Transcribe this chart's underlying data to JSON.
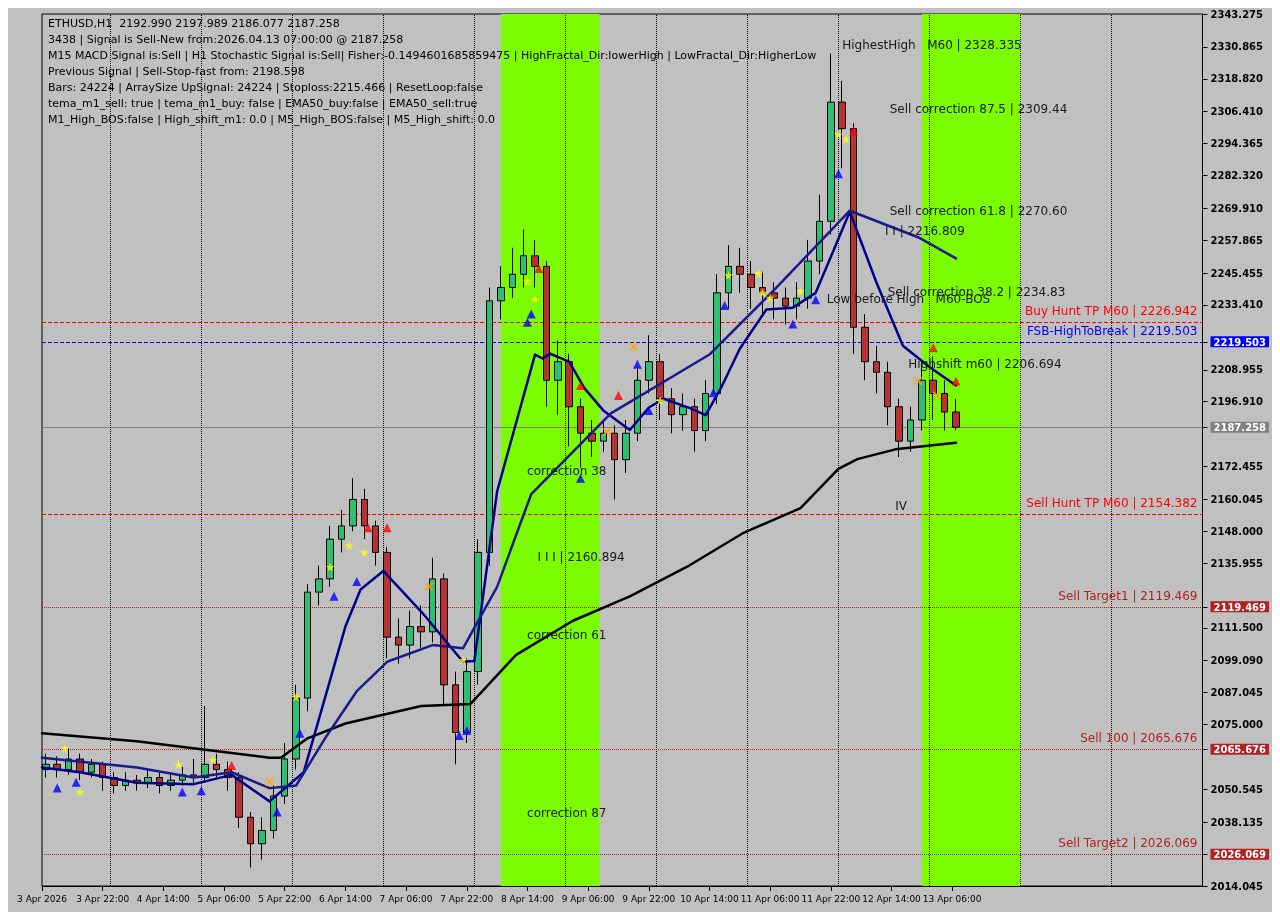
{
  "chart_data": {
    "type": "candlestick",
    "title": "ETHUSD,H1  2192.990 2197.989 2186.077 2187.258",
    "annotations": [
      "3438 | Signal is Sell-New from:2026.04.13 07:00:00 @ 2187.258",
      "M15 MACD Signal is:Sell | H1 Stochastic Signal is:Sell| Fisher:-0.1494601685859475 | HighFractal_Dir:lowerHigh | LowFractal_Dir:HigherLow",
      "Previous Signal | Sell-Stop-fast from: 2198.598",
      "Bars: 24224 | ArraySize UpSignal: 24224 | Stoploss:2215.466 | ResetLoop:false",
      "tema_m1_sell: true | tema_m1_buy: false | EMA50_buy:false | EMA50_sell:true",
      "M1_High_BOS:false | High_shift_m1: 0.0 | M5_High_BOS:false | M5_High_shift: 0.0",
      "Sell correction 87.5 | 2309.44",
      "Sell correction 61.8 | 2270.60",
      "I I | 2216.809",
      "Highshift m60 | 2206.694",
      "I I I | 2160.894",
      "correction 38",
      "correction 61",
      "correction 87",
      "Low before High   M60-BOS",
      {
        "text": "HighestHigh   M60 | 2328.335",
        "x": "2026-04-12T01:00",
        "y": 2328.335
      },
      {
        "text": "Sell correction 38.2 | 2234.83",
        "x": "2026-04-12T13:00",
        "y": 2234.83
      },
      {
        "text": "IV",
        "x": "2026-04-12T15:00",
        "y": 2154.1
      }
    ],
    "x": [
      "2026-04-03T07:00",
      "2026-04-03T10:00",
      "2026-04-03T13:00",
      "2026-04-03T16:00",
      "2026-04-03T19:00",
      "2026-04-03T22:00",
      "2026-04-04T01:00",
      "2026-04-04T04:00",
      "2026-04-04T07:00",
      "2026-04-04T10:00",
      "2026-04-04T13:00",
      "2026-04-04T16:00",
      "2026-04-04T19:00",
      "2026-04-04T22:00",
      "2026-04-05T01:00",
      "2026-04-05T04:00",
      "2026-04-05T07:00",
      "2026-04-05T10:00",
      "2026-04-05T13:00",
      "2026-04-05T16:00",
      "2026-04-05T19:00",
      "2026-04-05T22:00",
      "2026-04-06T01:00",
      "2026-04-06T04:00",
      "2026-04-06T07:00",
      "2026-04-06T10:00",
      "2026-04-06T13:00",
      "2026-04-06T16:00",
      "2026-04-06T19:00",
      "2026-04-06T22:00",
      "2026-04-07T01:00",
      "2026-04-07T04:00",
      "2026-04-07T07:00",
      "2026-04-07T10:00",
      "2026-04-07T13:00",
      "2026-04-07T16:00",
      "2026-04-07T19:00",
      "2026-04-07T22:00",
      "2026-04-08T01:00",
      "2026-04-08T04:00",
      "2026-04-08T07:00",
      "2026-04-08T10:00",
      "2026-04-08T13:00",
      "2026-04-08T16:00",
      "2026-04-08T19:00",
      "2026-04-08T22:00",
      "2026-04-09T01:00",
      "2026-04-09T04:00",
      "2026-04-09T07:00",
      "2026-04-09T10:00",
      "2026-04-09T13:00",
      "2026-04-09T16:00",
      "2026-04-09T19:00",
      "2026-04-09T22:00",
      "2026-04-10T01:00",
      "2026-04-10T04:00",
      "2026-04-10T07:00",
      "2026-04-10T10:00",
      "2026-04-10T13:00",
      "2026-04-10T16:00",
      "2026-04-10T19:00",
      "2026-04-10T22:00",
      "2026-04-11T01:00",
      "2026-04-11T04:00",
      "2026-04-11T07:00",
      "2026-04-11T10:00",
      "2026-04-11T13:00",
      "2026-04-11T16:00",
      "2026-04-11T19:00",
      "2026-04-11T22:00",
      "2026-04-12T01:00",
      "2026-04-12T04:00",
      "2026-04-12T07:00",
      "2026-04-12T10:00",
      "2026-04-12T13:00",
      "2026-04-12T16:00",
      "2026-04-12T19:00",
      "2026-04-12T22:00",
      "2026-04-13T01:00",
      "2026-04-13T04:00",
      "2026-04-13T07:00"
    ],
    "ohlc": [
      [
        2058,
        2064,
        2055,
        2060
      ],
      [
        2060,
        2063,
        2055,
        2058
      ],
      [
        2058,
        2066,
        2056,
        2062
      ],
      [
        2062,
        2064,
        2054,
        2057
      ],
      [
        2057,
        2062,
        2055,
        2060
      ],
      [
        2060,
        2061,
        2050,
        2055
      ],
      [
        2055,
        2057,
        2049,
        2052
      ],
      [
        2052,
        2057,
        2050,
        2054
      ],
      [
        2054,
        2056,
        2050,
        2053
      ],
      [
        2053,
        2058,
        2051,
        2055
      ],
      [
        2055,
        2057,
        2049,
        2052
      ],
      [
        2052,
        2057,
        2050,
        2054
      ],
      [
        2054,
        2059,
        2052,
        2056
      ],
      [
        2056,
        2062,
        2053,
        2055
      ],
      [
        2055,
        2082,
        2053,
        2060
      ],
      [
        2060,
        2064,
        2055,
        2058
      ],
      [
        2058,
        2061,
        2050,
        2055
      ],
      [
        2055,
        2057,
        2036,
        2040
      ],
      [
        2040,
        2042,
        2021,
        2030
      ],
      [
        2030,
        2040,
        2024,
        2035
      ],
      [
        2035,
        2052,
        2032,
        2048
      ],
      [
        2048,
        2068,
        2045,
        2062
      ],
      [
        2062,
        2090,
        2058,
        2085
      ],
      [
        2085,
        2128,
        2080,
        2125
      ],
      [
        2125,
        2135,
        2120,
        2130
      ],
      [
        2130,
        2150,
        2127,
        2145
      ],
      [
        2145,
        2156,
        2140,
        2150
      ],
      [
        2150,
        2168,
        2148,
        2160
      ],
      [
        2160,
        2164,
        2145,
        2150
      ],
      [
        2150,
        2152,
        2135,
        2140
      ],
      [
        2140,
        2142,
        2100,
        2108
      ],
      [
        2108,
        2115,
        2098,
        2105
      ],
      [
        2105,
        2118,
        2100,
        2112
      ],
      [
        2112,
        2120,
        2104,
        2110
      ],
      [
        2110,
        2138,
        2106,
        2130
      ],
      [
        2130,
        2132,
        2082,
        2090
      ],
      [
        2090,
        2095,
        2060,
        2072
      ],
      [
        2072,
        2100,
        2068,
        2095
      ],
      [
        2095,
        2145,
        2090,
        2140
      ],
      [
        2140,
        2240,
        2135,
        2235
      ],
      [
        2235,
        2248,
        2228,
        2240
      ],
      [
        2240,
        2255,
        2236,
        2245
      ],
      [
        2245,
        2262,
        2240,
        2252
      ],
      [
        2252,
        2258,
        2240,
        2248
      ],
      [
        2248,
        2250,
        2195,
        2205
      ],
      [
        2205,
        2220,
        2192,
        2212
      ],
      [
        2212,
        2215,
        2180,
        2195
      ],
      [
        2195,
        2198,
        2172,
        2185
      ],
      [
        2185,
        2190,
        2176,
        2182
      ],
      [
        2182,
        2190,
        2178,
        2185
      ],
      [
        2185,
        2188,
        2160,
        2175
      ],
      [
        2175,
        2190,
        2170,
        2185
      ],
      [
        2185,
        2210,
        2182,
        2205
      ],
      [
        2205,
        2222,
        2200,
        2212
      ],
      [
        2212,
        2215,
        2190,
        2198
      ],
      [
        2198,
        2202,
        2185,
        2192
      ],
      [
        2192,
        2200,
        2186,
        2195
      ],
      [
        2195,
        2198,
        2178,
        2186
      ],
      [
        2186,
        2205,
        2182,
        2200
      ],
      [
        2200,
        2245,
        2196,
        2238
      ],
      [
        2238,
        2256,
        2232,
        2248
      ],
      [
        2248,
        2255,
        2238,
        2245
      ],
      [
        2245,
        2250,
        2232,
        2240
      ],
      [
        2240,
        2246,
        2230,
        2238
      ],
      [
        2238,
        2242,
        2228,
        2236
      ],
      [
        2236,
        2240,
        2226,
        2233
      ],
      [
        2233,
        2242,
        2228,
        2236
      ],
      [
        2236,
        2258,
        2232,
        2250
      ],
      [
        2250,
        2275,
        2245,
        2265
      ],
      [
        2265,
        2328.335,
        2260,
        2310
      ],
      [
        2310,
        2318,
        2285,
        2300
      ],
      [
        2300,
        2302,
        2215,
        2225
      ],
      [
        2225,
        2230,
        2205,
        2212
      ],
      [
        2212,
        2218,
        2200,
        2208
      ],
      [
        2208,
        2212,
        2188,
        2195
      ],
      [
        2195,
        2198,
        2176,
        2182
      ],
      [
        2182,
        2195,
        2178,
        2190
      ],
      [
        2190,
        2212,
        2186,
        2205
      ],
      [
        2205,
        2214,
        2190,
        2200
      ],
      [
        2200,
        2205,
        2186,
        2193
      ],
      [
        2192.99,
        2197.989,
        2186.077,
        2187.258
      ]
    ],
    "series": [
      {
        "type": "line",
        "color": "#000000",
        "x": [
          "2026-04-03T06:00",
          "2026-04-04T07:00",
          "2026-04-05T08:00",
          "2026-04-05T18:00",
          "2026-04-05T21:00",
          "2026-04-06T04:00",
          "2026-04-06T14:00",
          "2026-04-07T10:00",
          "2026-04-07T23:00",
          "2026-04-08T11:00",
          "2026-04-09T02:00",
          "2026-04-09T17:00",
          "2026-04-10T08:00",
          "2026-04-10T23:00",
          "2026-04-11T14:00",
          "2026-04-12T00:00",
          "2026-04-12T05:00",
          "2026-04-12T15:00",
          "2026-04-13T07:00"
        ],
        "values": [
          2071.7,
          2068.7,
          2064.3,
          2062.5,
          2062.5,
          2069.8,
          2075.4,
          2082.0,
          2082.8,
          2101.3,
          2114.2,
          2123.4,
          2134.5,
          2147.4,
          2156.7,
          2171.5,
          2175.2,
          2178.9,
          2181.4
        ]
      },
      {
        "type": "line",
        "color": "#00008b",
        "x": [
          "2026-04-03T06:00",
          "2026-04-03T16:00",
          "2026-04-04T07:00",
          "2026-04-04T22:00",
          "2026-04-05T08:00",
          "2026-04-05T18:00",
          "2026-04-06T03:00",
          "2026-04-06T14:00",
          "2026-04-06T18:00",
          "2026-04-07T00:00",
          "2026-04-07T11:00",
          "2026-04-07T21:00",
          "2026-04-08T00:00",
          "2026-04-08T06:00",
          "2026-04-08T16:00",
          "2026-04-08T18:00",
          "2026-04-08T20:00",
          "2026-04-09T01:00",
          "2026-04-09T05:00",
          "2026-04-09T10:00",
          "2026-04-09T17:00",
          "2026-04-09T22:00",
          "2026-04-10T02:00",
          "2026-04-10T09:00",
          "2026-04-10T13:00",
          "2026-04-10T17:00",
          "2026-04-10T22:00",
          "2026-04-11T05:00",
          "2026-04-11T12:00",
          "2026-04-11T18:00",
          "2026-04-12T03:00",
          "2026-04-12T10:00",
          "2026-04-12T17:00",
          "2026-04-13T00:00",
          "2026-04-13T07:00"
        ],
        "values": [
          2058.8,
          2057,
          2053,
          2052.5,
          2056,
          2046,
          2057,
          2112,
          2126,
          2133,
          2116,
          2098.7,
          2099,
          2163,
          2214.7,
          2213.2,
          2215,
          2212,
          2202,
          2193.6,
          2186.2,
          2194.7,
          2198,
          2194.4,
          2191.8,
          2202,
          2216.9,
          2231.7,
          2232.4,
          2238,
          2268.6,
          2242,
          2218,
          2210,
          2203
        ]
      },
      {
        "type": "line",
        "color": "#1a1a8c",
        "x": [
          "2026-04-03T06:00",
          "2026-04-04T07:00",
          "2026-04-04T22:00",
          "2026-04-05T08:00",
          "2026-04-05T18:00",
          "2026-04-06T01:00",
          "2026-04-06T09:00",
          "2026-04-06T17:00",
          "2026-04-07T01:00",
          "2026-04-07T13:00",
          "2026-04-07T21:00",
          "2026-04-08T06:00",
          "2026-04-08T15:00",
          "2026-04-09T12:00",
          "2026-04-10T14:00",
          "2026-04-11T07:00",
          "2026-04-12T03:00",
          "2026-04-12T21:00",
          "2026-04-13T07:00"
        ],
        "values": [
          2062.5,
          2058.8,
          2055,
          2057,
          2051,
          2052,
          2070.6,
          2087.6,
          2098.7,
          2105,
          2103.8,
          2127,
          2162,
          2192.5,
          2214.7,
          2239,
          2269,
          2259,
          2251
        ]
      },
      {
        "type": "scatter",
        "marker": "star",
        "color": "#ffff00",
        "x": [
          "2026-04-03T12:00",
          "2026-04-03T16:00",
          "2026-04-04T18:00",
          "2026-04-05T03:00",
          "2026-04-06T01:00",
          "2026-04-06T10:00",
          "2026-04-06T15:00",
          "2026-04-06T19:00",
          "2026-04-07T21:00",
          "2026-04-08T14:00",
          "2026-04-08T16:00",
          "2026-04-10T01:00",
          "2026-04-10T19:00",
          "2026-04-11T03:00",
          "2026-04-11T04:00",
          "2026-04-11T06:00",
          "2026-04-11T14:00",
          "2026-04-12T00:00",
          "2026-04-12T02:00"
        ],
        "values": [
          2066,
          2049.5,
          2059.9,
          2061.7,
          2085.5,
          2134.5,
          2142.6,
          2140,
          2099.4,
          2242.4,
          2235.7,
          2197.3,
          2244.6,
          2245.4,
          2238,
          2236.1,
          2238.7,
          2297.8,
          2296
        ]
      },
      {
        "type": "scatter",
        "marker": "cross",
        "color": "#ffa500",
        "x": [
          "2026-04-05T18:00",
          "2026-04-07T12:00",
          "2026-04-09T11:00",
          "2026-04-09T18:00",
          "2026-04-12T21:00",
          "2026-04-13T02:00"
        ],
        "values": [
          2053.3,
          2127.1,
          2185.5,
          2217.6,
          2204.7,
          2199.2
        ]
      },
      {
        "type": "scatter",
        "marker": "triangle",
        "color": "#0000ff",
        "x": [
          "2026-04-03T10:00",
          "2026-04-03T15:00",
          "2026-04-04T19:00",
          "2026-04-05T00:00",
          "2026-04-05T20:00",
          "2026-04-06T02:00",
          "2026-04-06T11:00",
          "2026-04-06T17:00",
          "2026-04-07T20:00",
          "2026-04-07T22:00",
          "2026-04-08T14:00",
          "2026-04-08T15:00",
          "2026-04-09T04:00",
          "2026-04-09T19:00",
          "2026-04-09T22:00",
          "2026-04-10T15:00",
          "2026-04-10T18:00",
          "2026-04-11T12:00",
          "2026-04-11T18:00",
          "2026-04-12T00:00"
        ],
        "values": [
          2051,
          2053.2,
          2049.5,
          2050,
          2042,
          2071.7,
          2123.4,
          2129,
          2070.9,
          2072.8,
          2226.9,
          2230,
          2168,
          2211,
          2193.6,
          2200.3,
          2233.2,
          2226.2,
          2235.4,
          2283
        ]
      },
      {
        "type": "scatter",
        "marker": "triangle",
        "color": "#ff0000",
        "x": [
          "2026-04-05T08:00",
          "2026-04-06T20:00",
          "2026-04-07T01:00",
          "2026-04-08T17:00",
          "2026-04-09T04:00",
          "2026-04-09T14:00",
          "2026-04-12T04:00",
          "2026-04-13T01:00",
          "2026-04-13T07:00"
        ],
        "values": [
          2059.5,
          2149.3,
          2149.3,
          2247.2,
          2203,
          2199.2,
          2299,
          2217.3,
          2204.7
        ]
      }
    ],
    "ref_lines": [
      {
        "axis": "y",
        "value": 2219.503,
        "label": "FSB-HighToBreak | 2219.503",
        "color": "#0000ff",
        "line_style": "dashed"
      },
      {
        "axis": "y",
        "value": 2226.942,
        "label": "Buy Hunt TP M60 | 2226.942",
        "color": "#ff0000",
        "line_style": "dashed"
      },
      {
        "axis": "y",
        "value": 2187.258,
        "color": "#808080",
        "line_style": "solid"
      },
      {
        "axis": "y",
        "value": 2154.382,
        "label": "Sell Hunt TP M60 | 2154.382",
        "color": "#ff0000",
        "line_style": "dashed"
      },
      {
        "axis": "y",
        "value": 2119.469,
        "label": "Sell Target1 | 2119.469",
        "color": "#b22222",
        "line_style": "dotted"
      },
      {
        "axis": "y",
        "value": 2065.676,
        "label": "Sell 100 | 2065.676",
        "color": "#b22222",
        "line_style": "dotted"
      },
      {
        "axis": "y",
        "value": 2026.069,
        "label": "Sell Target2 | 2026.069",
        "color": "#b22222",
        "line_style": "dotted"
      },
      {
        "axis": "x",
        "value": "2026-04-04T00:00",
        "color": "#000000",
        "line_style": "dotted"
      },
      {
        "axis": "x",
        "value": "2026-04-05T00:00",
        "color": "#000000",
        "line_style": "dotted"
      },
      {
        "axis": "x",
        "value": "2026-04-06T00:00",
        "color": "#000000",
        "line_style": "dotted"
      },
      {
        "axis": "x",
        "value": "2026-04-07T00:00",
        "color": "#000000",
        "line_style": "dotted"
      },
      {
        "axis": "x",
        "value": "2026-04-08T00:00",
        "color": "#000000",
        "line_style": "dotted"
      },
      {
        "axis": "x",
        "value": "2026-04-09T00:00",
        "color": "#000000",
        "line_style": "dotted"
      },
      {
        "axis": "x",
        "value": "2026-04-10T00:00",
        "color": "#000000",
        "line_style": "dotted"
      },
      {
        "axis": "x",
        "value": "2026-04-11T00:00",
        "color": "#000000",
        "line_style": "dotted"
      },
      {
        "axis": "x",
        "value": "2026-04-12T00:00",
        "color": "#000000",
        "line_style": "dotted"
      },
      {
        "axis": "x",
        "value": "2026-04-13T00:00",
        "color": "#000000",
        "line_style": "dotted"
      },
      {
        "axis": "x",
        "value": "2026-04-14T00:00",
        "color": "#000000",
        "line_style": "dotted"
      },
      {
        "axis": "x",
        "value": "2026-04-15T00:00",
        "color": "#000000",
        "line_style": "dotted"
      }
    ],
    "bands": [
      {
        "axis": "x",
        "from": "2026-04-08T07:00",
        "to": "2026-04-09T09:00",
        "color": "#7cfc00"
      },
      {
        "axis": "x",
        "from": "2026-04-12T22:00",
        "to": "2026-04-14T00:00",
        "color": "#7cfc00"
      }
    ],
    "xlim": [
      "2026-04-03T06:00",
      "2026-04-16T00:00"
    ],
    "xticks": [
      {
        "value": "2026-04-03T06:00",
        "label": "3 Apr 2026"
      },
      {
        "value": "2026-04-03T22:00",
        "label": "3 Apr 22:00"
      },
      {
        "value": "2026-04-04T14:00",
        "label": "4 Apr 14:00"
      },
      {
        "value": "2026-04-05T06:00",
        "label": "5 Apr 06:00"
      },
      {
        "value": "2026-04-05T22:00",
        "label": "5 Apr 22:00"
      },
      {
        "value": "2026-04-06T14:00",
        "label": "6 Apr 14:00"
      },
      {
        "value": "2026-04-07T06:00",
        "label": "7 Apr 06:00"
      },
      {
        "value": "2026-04-07T22:00",
        "label": "7 Apr 22:00"
      },
      {
        "value": "2026-04-08T14:00",
        "label": "8 Apr 14:00"
      },
      {
        "value": "2026-04-09T06:00",
        "label": "9 Apr 06:00"
      },
      {
        "value": "2026-04-09T22:00",
        "label": "9 Apr 22:00"
      },
      {
        "value": "2026-04-10T14:00",
        "label": "10 Apr 14:00"
      },
      {
        "value": "2026-04-11T06:00",
        "label": "11 Apr 06:00"
      },
      {
        "value": "2026-04-11T22:00",
        "label": "11 Apr 22:00"
      },
      {
        "value": "2026-04-12T14:00",
        "label": "12 Apr 14:00"
      },
      {
        "value": "2026-04-13T06:00",
        "label": "13 Apr 06:00"
      }
    ],
    "ylim": [
      2014.045,
      2343.275
    ],
    "yticks": [
      2014.045,
      2026.069,
      2038.135,
      2050.545,
      2065.676,
      {
        "value": 2075,
        "label": "2075.000"
      },
      2087.045,
      {
        "value": 2099.09,
        "label": "2099.090"
      },
      {
        "value": 2111.5,
        "label": "2111.500"
      },
      2119.469,
      2135.955,
      {
        "value": 2148,
        "label": "2148.000"
      },
      2160.045,
      2172.455,
      2187.258,
      {
        "value": 2196.91,
        "label": "2196.910"
      },
      2208.955,
      2219.503,
      {
        "value": 2233.41,
        "label": "2233.410"
      },
      2245.455,
      2257.865,
      {
        "value": 2269.91,
        "label": "2269.910"
      },
      {
        "value": 2282.32,
        "label": "2282.320"
      },
      2294.365,
      {
        "value": 2306.41,
        "label": "2306.410"
      },
      {
        "value": 2318.82,
        "label": "2318.820"
      },
      2330.865,
      2343.275
    ]
  }
}
